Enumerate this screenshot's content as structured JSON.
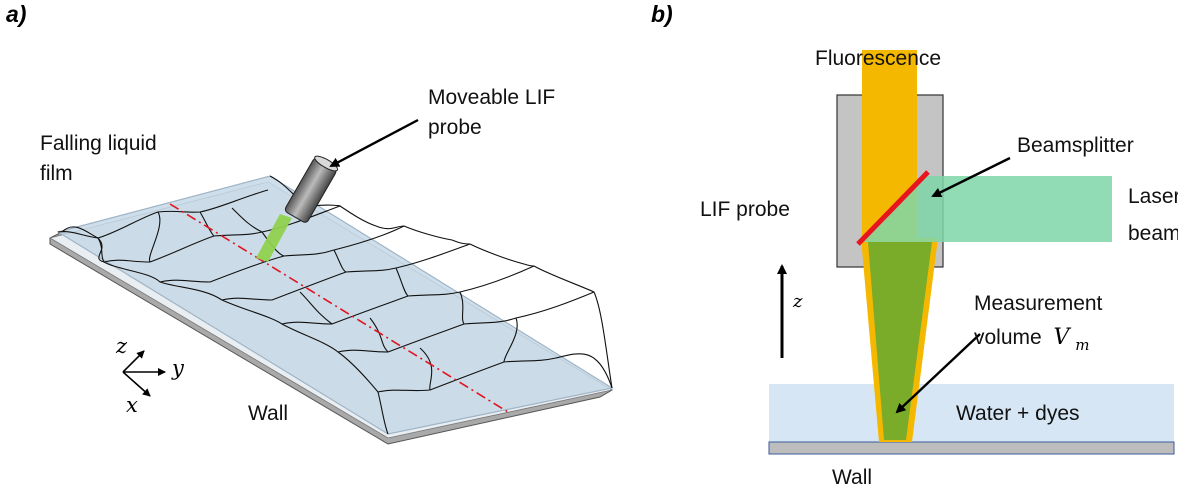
{
  "panel_a": {
    "label": "a)",
    "film_label_line1": "Falling liquid",
    "film_label_line2": "film",
    "probe_label_line1": "Moveable LIF",
    "probe_label_line2": "probe",
    "wall_label": "Wall",
    "axes": {
      "z": "z",
      "y": "y",
      "x": "x"
    }
  },
  "panel_b": {
    "label": "b)",
    "fluorescence_label": "Fluorescence",
    "beamsplitter_label": "Beamsplitter",
    "lif_probe_label": "LIF probe",
    "laser_label_line1": "Laser",
    "laser_label_line2": "beam",
    "z_label": "z",
    "measurement_label_line1": "Measurement",
    "measurement_label_line2": "volume",
    "volume_symbol": "V",
    "volume_subscript": "m",
    "water_label": "Water + dyes",
    "wall_label": "Wall"
  },
  "colors": {
    "film": "#cfdde8",
    "film_edge": "#9fb4c6",
    "wall_gray": "#b7b7b7",
    "fluorescence": "#f5b800",
    "laser": "#7ed6a8",
    "beamsplitter": "#e8141e",
    "measurement_green": "#7aac2a",
    "probe_beam_green": "#8fd14f",
    "water": "#d6e6f4",
    "scanline": "#e0141e"
  }
}
